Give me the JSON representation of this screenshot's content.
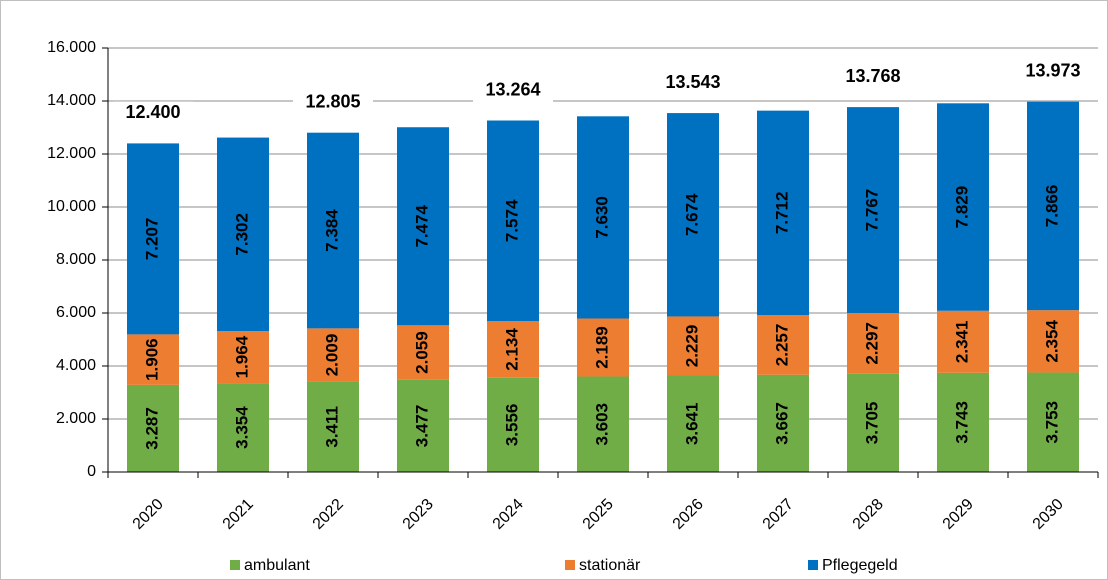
{
  "chart_data": {
    "type": "stacked_bar",
    "categories": [
      "2020",
      "2021",
      "2022",
      "2023",
      "2024",
      "2025",
      "2026",
      "2027",
      "2028",
      "2029",
      "2030"
    ],
    "series": [
      {
        "name": "ambulant",
        "color": "#70ad47",
        "values": [
          3287,
          3354,
          3411,
          3477,
          3556,
          3603,
          3641,
          3667,
          3705,
          3743,
          3753
        ],
        "value_labels": [
          "3.287",
          "3.354",
          "3.411",
          "3.477",
          "3.556",
          "3.603",
          "3.641",
          "3.667",
          "3.705",
          "3.743",
          "3.753"
        ]
      },
      {
        "name": "stationär",
        "color": "#ed7d31",
        "values": [
          1906,
          1964,
          2009,
          2059,
          2134,
          2189,
          2229,
          2257,
          2297,
          2341,
          2354
        ],
        "value_labels": [
          "1.906",
          "1.964",
          "2.009",
          "2.059",
          "2.134",
          "2.189",
          "2.229",
          "2.257",
          "2.297",
          "2.341",
          "2.354"
        ]
      },
      {
        "name": "Pflegegeld",
        "color": "#0070c0",
        "values": [
          7207,
          7302,
          7384,
          7474,
          7574,
          7630,
          7674,
          7712,
          7767,
          7829,
          7866
        ],
        "value_labels": [
          "7.207",
          "7.302",
          "7.384",
          "7.474",
          "7.574",
          "7.630",
          "7.674",
          "7.712",
          "7.767",
          "7.829",
          "7.866"
        ]
      }
    ],
    "annotations": [
      {
        "x": "2020",
        "text": "12.400"
      },
      {
        "x": "2022",
        "text": "12.805"
      },
      {
        "x": "2024",
        "text": "13.264"
      },
      {
        "x": "2026",
        "text": "13.543"
      },
      {
        "x": "2028",
        "text": "13.768"
      },
      {
        "x": "2030",
        "text": "13.973"
      }
    ],
    "ylim": [
      0,
      16000
    ],
    "yticks": [
      0,
      {
        "value": 2000,
        "label": "2.000"
      },
      {
        "value": 4000,
        "label": "4.000"
      },
      {
        "value": 6000,
        "label": "6.000"
      },
      {
        "value": 8000,
        "label": "8.000"
      },
      {
        "value": 10000,
        "label": "10.000"
      },
      {
        "value": 12000,
        "label": "12.000"
      },
      {
        "value": 14000,
        "label": "14.000"
      },
      {
        "value": 16000,
        "label": "16.000"
      }
    ],
    "grid": true,
    "legend": "bottom"
  }
}
